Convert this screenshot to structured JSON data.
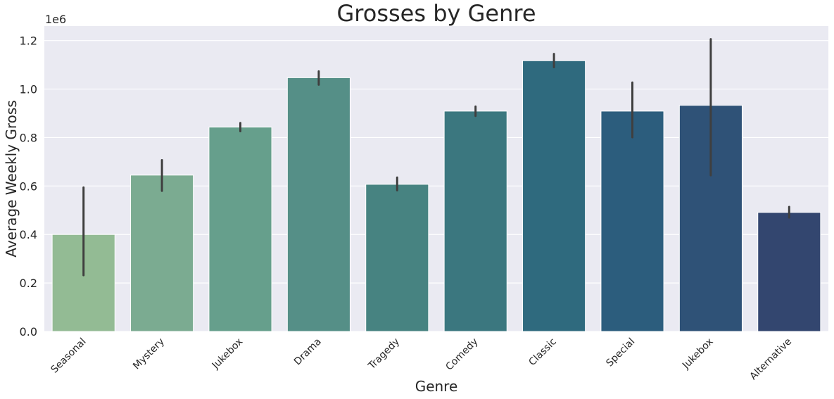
{
  "chart_data": {
    "type": "bar",
    "title": "Grosses by Genre",
    "xlabel": "Genre",
    "ylabel": "Average Weekly Gross",
    "y_offset_label": "1e6",
    "ylim": [
      0,
      1.26
    ],
    "yticks": [
      0.0,
      0.2,
      0.4,
      0.6,
      0.8,
      1.0,
      1.2
    ],
    "ytick_labels": [
      "0.0",
      "0.2",
      "0.4",
      "0.6",
      "0.8",
      "1.0",
      "1.2"
    ],
    "grid": true,
    "categories": [
      "Seasonal",
      "Mystery",
      "Jukebox",
      "Drama",
      "Tragedy",
      "Comedy",
      "Classic",
      "Special",
      "Jukebox",
      "Alternative"
    ],
    "values": [
      0.4,
      0.645,
      0.843,
      1.047,
      0.607,
      0.909,
      1.117,
      0.909,
      0.933,
      0.491
    ],
    "error_low": [
      0.232,
      0.58,
      0.826,
      1.018,
      0.582,
      0.889,
      1.09,
      0.801,
      0.644,
      0.47
    ],
    "error_high": [
      0.594,
      0.707,
      0.86,
      1.073,
      0.635,
      0.928,
      1.145,
      1.027,
      1.206,
      0.514
    ],
    "colors": [
      "#93bb94",
      "#7bab91",
      "#669f8c",
      "#558f87",
      "#478381",
      "#3b777f",
      "#2f6a7e",
      "#2c5d7d",
      "#2f5277",
      "#33466f"
    ],
    "error_color": "#3f3f3f",
    "background_color": "#eaeaf2",
    "grid_color": "#ffffff"
  }
}
